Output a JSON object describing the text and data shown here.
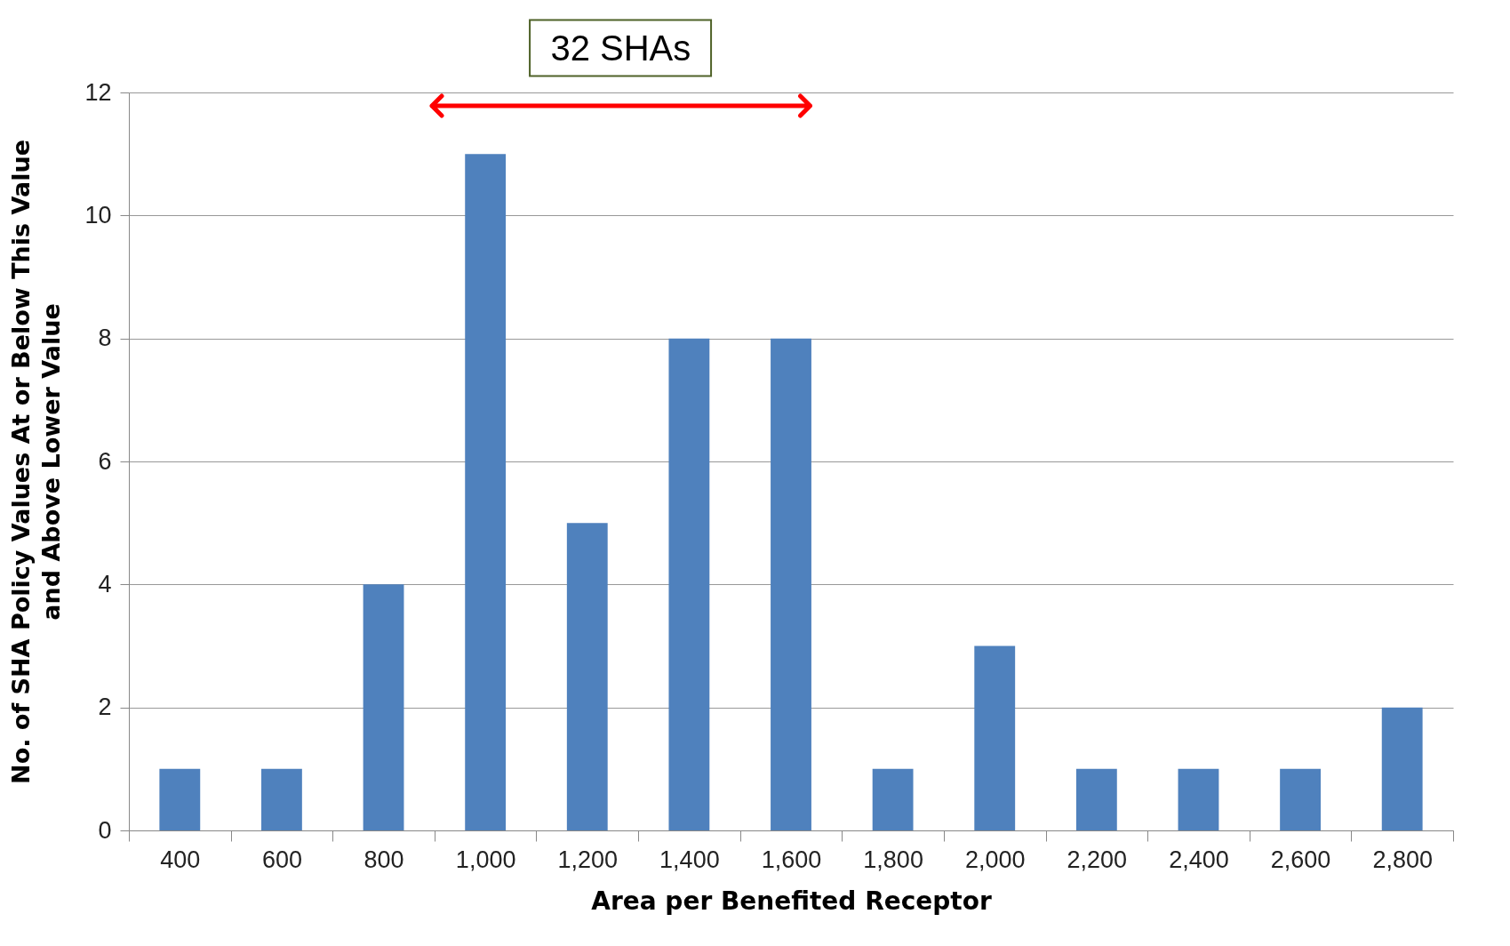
{
  "chart_data": {
    "type": "bar",
    "xlabel": "Area per Benefited Receptor",
    "ylabel": "No. of SHA Policy Values At or Below This Value\nand Above Lower Value",
    "categories": [
      "400",
      "600",
      "800",
      "1,000",
      "1,200",
      "1,400",
      "1,600",
      "1,800",
      "2,000",
      "2,200",
      "2,400",
      "2,600",
      "2,800"
    ],
    "values": [
      1,
      1,
      4,
      11,
      5,
      8,
      8,
      1,
      3,
      1,
      1,
      1,
      2
    ],
    "color": "#4f81bd",
    "ylim": [
      0,
      12
    ],
    "yticks": [
      0,
      2,
      4,
      6,
      8,
      10,
      12
    ],
    "grid": "y",
    "annotations": [
      "32 SHAs"
    ]
  }
}
